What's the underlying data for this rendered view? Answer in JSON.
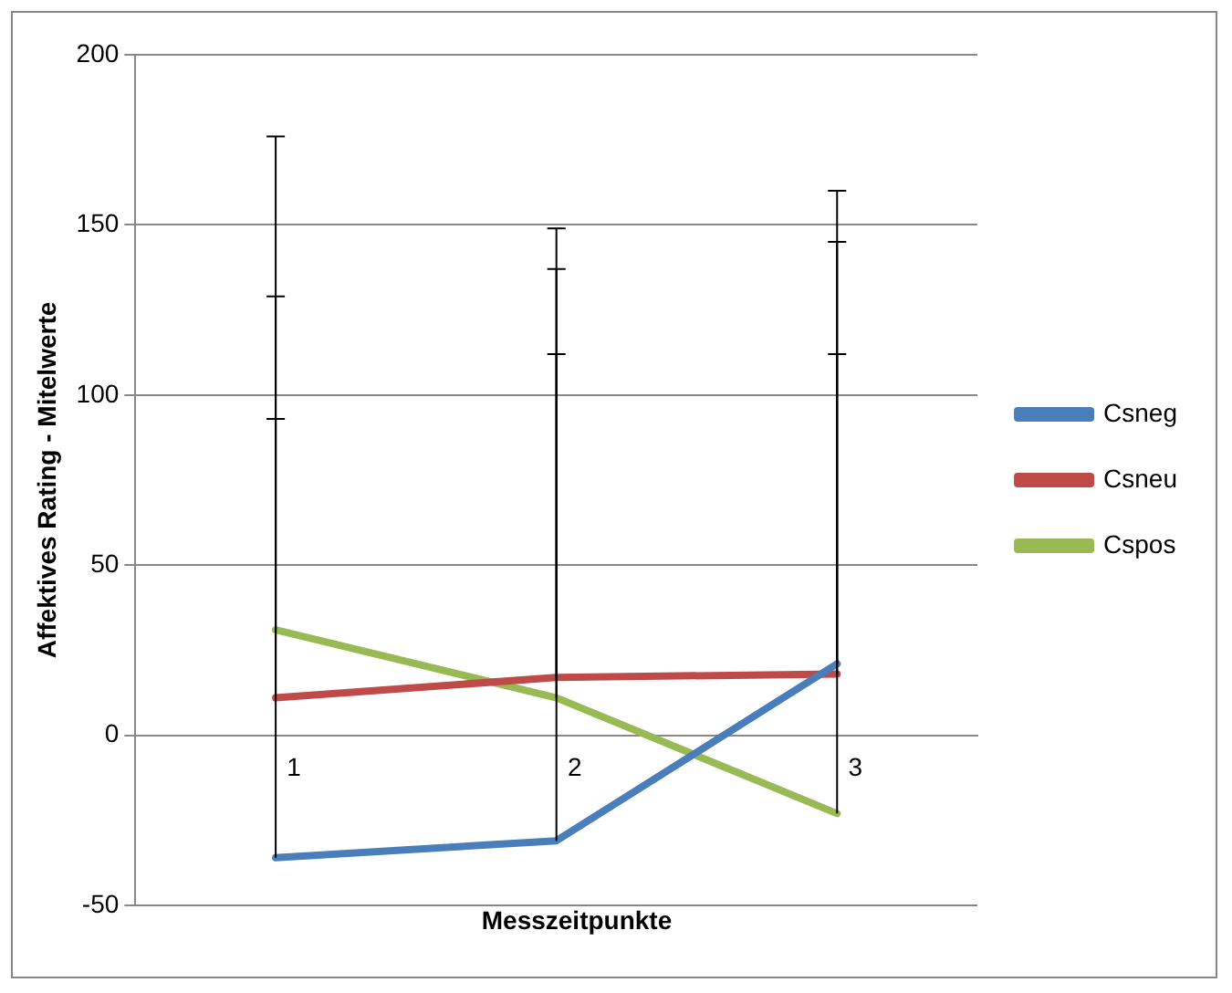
{
  "chart_data": {
    "type": "line",
    "ylabel": "Affektives Rating - Mitelwerte",
    "xlabel": "Messzeitpunkte",
    "categories": [
      "1",
      "2",
      "3"
    ],
    "series": [
      {
        "name": "Csneg",
        "color": "#4a7ebb",
        "values": [
          -36,
          -31,
          21
        ],
        "errors": [
          [
            -36,
            93
          ],
          [
            -31,
            112
          ],
          [
            21,
            112
          ]
        ]
      },
      {
        "name": "Csneu",
        "color": "#be4b48",
        "values": [
          11,
          17,
          18
        ],
        "errors": [
          [
            11,
            129
          ],
          [
            17,
            137
          ],
          [
            18,
            145
          ]
        ]
      },
      {
        "name": "Cspos",
        "color": "#98b954",
        "values": [
          31,
          11,
          -23
        ],
        "errors": [
          [
            31,
            176
          ],
          [
            11,
            149
          ],
          [
            -23,
            160
          ]
        ]
      }
    ],
    "ylim": [
      -50,
      200
    ],
    "yticks": [
      -50,
      0,
      50,
      100,
      150,
      200
    ],
    "grid": "y",
    "legend": "right",
    "marker": "none",
    "line_style": "solid"
  }
}
